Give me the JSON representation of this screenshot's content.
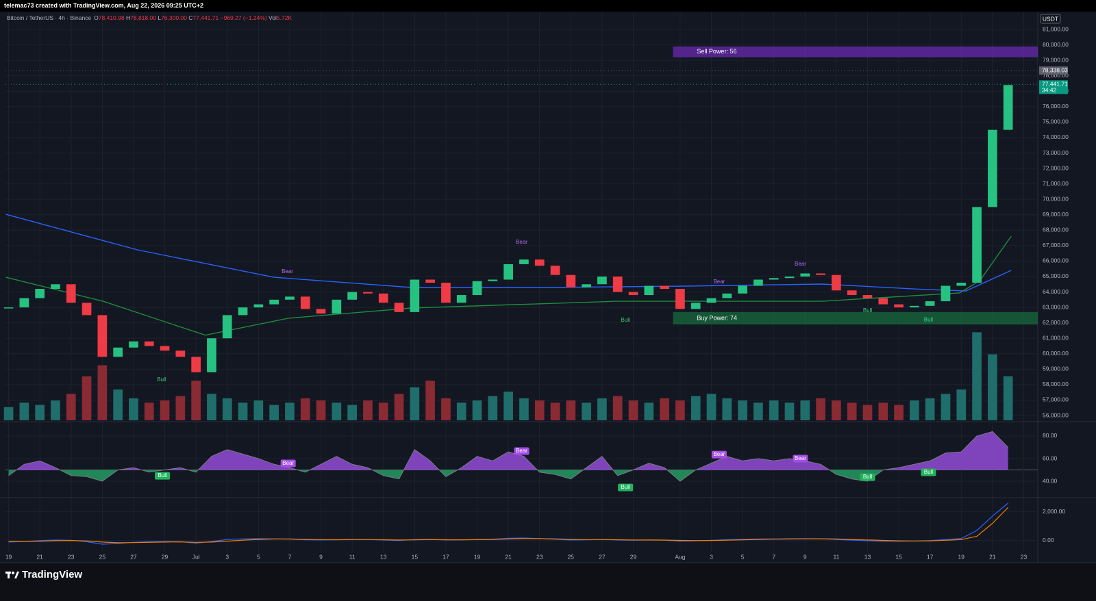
{
  "header": {
    "credit": "telemac73 created with TradingView.com, Aug 22, 2026 09:25 UTC+2",
    "symbol": "Bitcoin / TetherUS · 4h · Binance",
    "ohlc": [
      {
        "key": "O",
        "text": "78,410.98"
      },
      {
        "key": "H",
        "text": "78,818.00"
      },
      {
        "key": "L",
        "text": "76,300.00"
      },
      {
        "key": "C",
        "text": "77,441.71"
      }
    ],
    "change": "−969.27 (−1.24%)",
    "volume_key": "Vol",
    "volume": "5.72K"
  },
  "currency": "USDT",
  "footer": "TradingView",
  "chart_data": [
    {
      "type": "candlestick",
      "x": [
        0,
        1,
        2,
        3,
        4,
        5,
        6,
        7,
        8,
        9,
        10,
        11,
        12,
        13,
        14,
        15,
        16,
        17,
        18,
        19,
        20,
        21,
        22,
        23,
        24,
        25,
        26,
        27,
        28,
        29,
        30,
        31,
        32,
        33,
        34,
        35,
        36,
        37,
        38,
        39,
        40,
        41,
        42,
        43,
        44,
        45,
        46,
        47,
        48,
        49,
        50,
        51,
        52,
        53,
        54,
        55,
        56,
        57,
        58,
        59,
        60,
        61,
        62,
        63,
        64
      ],
      "values": [
        63000,
        63600,
        64200,
        64500,
        63300,
        62500,
        59800,
        60400,
        60800,
        60500,
        60200,
        59800,
        58800,
        61000,
        62500,
        63000,
        63200,
        63500,
        63700,
        62900,
        62600,
        63500,
        64000,
        63900,
        63300,
        62700,
        64800,
        64600,
        63300,
        63800,
        64700,
        64800,
        65800,
        66100,
        65700,
        65100,
        64300,
        64500,
        65000,
        64000,
        63800,
        64400,
        64200,
        62900,
        63300,
        63600,
        63900,
        64400,
        64800,
        64900,
        65000,
        65200,
        65100,
        64100,
        63800,
        63600,
        63200,
        63000,
        63100,
        63400,
        64400,
        64600,
        69500,
        74500,
        77400
      ],
      "up_color": "#26c281",
      "down_color": "#ef3b45",
      "volume": [
        6,
        8,
        7,
        9,
        12,
        20,
        25,
        14,
        10,
        8,
        9,
        11,
        18,
        12,
        10,
        8,
        9,
        7,
        8,
        10,
        9,
        8,
        7,
        9,
        8,
        12,
        15,
        18,
        10,
        8,
        9,
        11,
        13,
        10,
        9,
        8,
        9,
        8,
        10,
        11,
        9,
        8,
        10,
        9,
        11,
        12,
        10,
        9,
        8,
        9,
        8,
        9,
        10,
        9,
        8,
        7,
        8,
        7,
        9,
        10,
        12,
        14,
        40,
        30,
        20
      ],
      "volume_lim": [
        0,
        42
      ],
      "volume_up_color": "#1f6e6c",
      "volume_down_color": "#8a2a33",
      "series": [
        {
          "color": "#2962ff",
          "x": [
            -0.18,
            8.25,
            17.0,
            25.8,
            34.6,
            43.3,
            52.1,
            58.7,
            61.3,
            64.2
          ],
          "values": [
            69030,
            66730,
            64950,
            64290,
            64290,
            64380,
            64510,
            64160,
            64070,
            65400
          ]
        },
        {
          "color": "#1e8c3c",
          "x": [
            -0.18,
            6.05,
            12.6,
            17.9,
            25.8,
            38.9,
            52.1,
            60.9,
            62.2,
            64.2
          ],
          "values": [
            64950,
            63400,
            61200,
            62300,
            62960,
            63400,
            63400,
            63940,
            64740,
            67610
          ]
        }
      ],
      "zones": [
        {
          "label": "Sell Power: 56",
          "x0": 42.54,
          "y0": 79200,
          "y1": 79900,
          "color": "#6a2bb0"
        },
        {
          "label": "Buy Power: 74",
          "x0": 42.54,
          "y0": 61900,
          "y1": 62700,
          "color": "#176b3e"
        }
      ],
      "annotations": [
        {
          "text": "Bear",
          "x": 17.85,
          "y": 65310,
          "color": "#b36bf5"
        },
        {
          "text": "Bear",
          "x": 32.85,
          "y": 67210,
          "color": "#b36bf5"
        },
        {
          "text": "Bear",
          "x": 45.5,
          "y": 64640,
          "color": "#b36bf5"
        },
        {
          "text": "Bear",
          "x": 50.7,
          "y": 65800,
          "color": "#b36bf5"
        },
        {
          "text": "Bull",
          "x": 9.8,
          "y": 58300,
          "color": "#3fcf7f"
        },
        {
          "text": "Bull",
          "x": 39.5,
          "y": 62160,
          "color": "#3fcf7f"
        },
        {
          "text": "Bull",
          "x": 55.0,
          "y": 62780,
          "color": "#3fcf7f"
        },
        {
          "text": "Bull",
          "x": 58.9,
          "y": 62200,
          "color": "#3fcf7f"
        }
      ],
      "price_labels": [
        {
          "value": 78338.03,
          "label": "78,338.03",
          "color": "#5d606b"
        },
        {
          "value": 77441.71,
          "label": "77,441.71",
          "sub": "34:42",
          "color": "#089981"
        }
      ],
      "xlim": [
        -0.2,
        65.9
      ],
      "ylim": [
        55690,
        82110
      ],
      "yticks": [
        {
          "value": 56000,
          "label": "56,000.00"
        },
        {
          "value": 57000,
          "label": "57,000.00"
        },
        {
          "value": 58000,
          "label": "58,000.00"
        },
        {
          "value": 59000,
          "label": "59,000.00"
        },
        {
          "value": 60000,
          "label": "60,000.00"
        },
        {
          "value": 61000,
          "label": "61,000.00"
        },
        {
          "value": 62000,
          "label": "62,000.00"
        },
        {
          "value": 63000,
          "label": "63,000.00"
        },
        {
          "value": 64000,
          "label": "64,000.00"
        },
        {
          "value": 65000,
          "label": "65,000.00"
        },
        {
          "value": 66000,
          "label": "66,000.00"
        },
        {
          "value": 67000,
          "label": "67,000.00"
        },
        {
          "value": 68000,
          "label": "68,000.00"
        },
        {
          "value": 69000,
          "label": "69,000.00"
        },
        {
          "value": 70000,
          "label": "70,000.00"
        },
        {
          "value": 71000,
          "label": "71,000.00"
        },
        {
          "value": 72000,
          "label": "72,000.00"
        },
        {
          "value": 73000,
          "label": "73,000.00"
        },
        {
          "value": 74000,
          "label": "74,000.00"
        },
        {
          "value": 75000,
          "label": "75,000.00"
        },
        {
          "value": 76000,
          "label": "76,000.00"
        },
        {
          "value": 77000,
          "label": "77,000.00"
        },
        {
          "value": 78000,
          "label": "78,000.00"
        },
        {
          "value": 79000,
          "label": "79,000.00"
        },
        {
          "value": 80000,
          "label": "80,000.00"
        },
        {
          "value": 81000,
          "label": "81,000.00"
        }
      ],
      "grid": true
    },
    {
      "type": "area",
      "x": [
        0,
        1,
        2,
        3,
        4,
        5,
        6,
        7,
        8,
        9,
        10,
        11,
        12,
        13,
        14,
        15,
        16,
        17,
        18,
        19,
        20,
        21,
        22,
        23,
        24,
        25,
        26,
        27,
        28,
        29,
        30,
        31,
        32,
        33,
        34,
        35,
        36,
        37,
        38,
        39,
        40,
        41,
        42,
        43,
        44,
        45,
        46,
        47,
        48,
        49,
        50,
        51,
        52,
        53,
        54,
        55,
        56,
        57,
        58,
        59,
        60,
        61,
        62,
        63,
        64
      ],
      "values": [
        45,
        55,
        58,
        52,
        45,
        44,
        40,
        50,
        52,
        48,
        50,
        52,
        48,
        62,
        68,
        64,
        60,
        55,
        52,
        48,
        55,
        62,
        55,
        52,
        45,
        42,
        68,
        58,
        44,
        52,
        62,
        58,
        66,
        62,
        48,
        46,
        42,
        52,
        62,
        45,
        50,
        56,
        52,
        40,
        50,
        56,
        62,
        58,
        60,
        58,
        60,
        58,
        55,
        46,
        42,
        40,
        50,
        52,
        55,
        58,
        65,
        66,
        80,
        84,
        70
      ],
      "baseline": 50,
      "above_color": "#9b4fe3",
      "below_color": "#25a468",
      "annotations": [
        {
          "text": "Bear",
          "x": 17.9,
          "y": 55.8,
          "color": "#a54ce8"
        },
        {
          "text": "Bear",
          "x": 32.85,
          "y": 66.7,
          "color": "#a54ce8"
        },
        {
          "text": "Bear",
          "x": 45.5,
          "y": 63.6,
          "color": "#a54ce8"
        },
        {
          "text": "Bear",
          "x": 50.7,
          "y": 60,
          "color": "#a54ce8"
        },
        {
          "text": "Bull",
          "x": 9.85,
          "y": 44.8,
          "color": "#22b35e"
        },
        {
          "text": "Bull",
          "x": 39.5,
          "y": 34.5,
          "color": "#22b35e"
        },
        {
          "text": "Bull",
          "x": 55.0,
          "y": 43.6,
          "color": "#22b35e"
        },
        {
          "text": "Bull",
          "x": 58.9,
          "y": 47.9,
          "color": "#22b35e"
        }
      ],
      "xlim": [
        -0.2,
        65.9
      ],
      "ylim": [
        26.7,
        91.5
      ],
      "yticks": [
        {
          "value": 40,
          "label": "40.00"
        },
        {
          "value": 60,
          "label": "60.00"
        },
        {
          "value": 80,
          "label": "80.00"
        }
      ],
      "grid": true
    },
    {
      "type": "line",
      "x": [
        0,
        1,
        2,
        3,
        4,
        5,
        6,
        7,
        8,
        9,
        10,
        11,
        12,
        13,
        14,
        15,
        16,
        17,
        18,
        19,
        20,
        21,
        22,
        23,
        24,
        25,
        26,
        27,
        28,
        29,
        30,
        31,
        32,
        33,
        34,
        35,
        36,
        37,
        38,
        39,
        40,
        41,
        42,
        43,
        44,
        45,
        46,
        47,
        48,
        49,
        50,
        51,
        52,
        53,
        54,
        55,
        56,
        57,
        58,
        59,
        60,
        61,
        62,
        63,
        64
      ],
      "series": [
        {
          "color": "#2962ff",
          "values": [
            -100,
            -60,
            0,
            40,
            20,
            -80,
            -250,
            -200,
            -120,
            -80,
            -60,
            -80,
            -180,
            -60,
            80,
            120,
            140,
            120,
            100,
            60,
            40,
            60,
            80,
            70,
            40,
            0,
            80,
            90,
            40,
            50,
            80,
            100,
            160,
            180,
            140,
            90,
            40,
            50,
            80,
            40,
            20,
            40,
            30,
            -40,
            -20,
            20,
            60,
            90,
            110,
            120,
            130,
            140,
            130,
            80,
            30,
            -10,
            -40,
            -50,
            -30,
            0,
            80,
            150,
            700,
            1700,
            2600
          ]
        },
        {
          "color": "#f57c00",
          "values": [
            -60,
            -60,
            -40,
            -10,
            5,
            -20,
            -100,
            -150,
            -140,
            -120,
            -100,
            -90,
            -120,
            -100,
            -40,
            30,
            80,
            110,
            110,
            90,
            70,
            60,
            70,
            70,
            60,
            40,
            50,
            70,
            60,
            55,
            65,
            80,
            110,
            140,
            140,
            120,
            90,
            70,
            70,
            60,
            45,
            40,
            35,
            10,
            0,
            5,
            25,
            50,
            75,
            95,
            110,
            120,
            125,
            110,
            80,
            45,
            10,
            -15,
            -25,
            -15,
            20,
            70,
            300,
            1200,
            2300
          ]
        }
      ],
      "xlim": [
        -0.2,
        65.9
      ],
      "ylim": [
        -724,
        2931
      ],
      "yticks": [
        {
          "value": 0,
          "label": "0.00"
        },
        {
          "value": 2000,
          "label": "2,000.00"
        }
      ],
      "xticks": [
        {
          "value": 0,
          "label": "19"
        },
        {
          "value": 2,
          "label": "21"
        },
        {
          "value": 4,
          "label": "23"
        },
        {
          "value": 6,
          "label": "25"
        },
        {
          "value": 8,
          "label": "27"
        },
        {
          "value": 10,
          "label": "29"
        },
        {
          "value": 12,
          "label": "Jul"
        },
        {
          "value": 14,
          "label": "3"
        },
        {
          "value": 16,
          "label": "5"
        },
        {
          "value": 18,
          "label": "7"
        },
        {
          "value": 20,
          "label": "9"
        },
        {
          "value": 22,
          "label": "11"
        },
        {
          "value": 24,
          "label": "13"
        },
        {
          "value": 26,
          "label": "15"
        },
        {
          "value": 28,
          "label": "17"
        },
        {
          "value": 30,
          "label": "19"
        },
        {
          "value": 32,
          "label": "21"
        },
        {
          "value": 34,
          "label": "23"
        },
        {
          "value": 36,
          "label": "25"
        },
        {
          "value": 38,
          "label": "27"
        },
        {
          "value": 40,
          "label": "29"
        },
        {
          "value": 43,
          "label": "Aug"
        },
        {
          "value": 45,
          "label": "3"
        },
        {
          "value": 47,
          "label": "5"
        },
        {
          "value": 49,
          "label": "7"
        },
        {
          "value": 51,
          "label": "9"
        },
        {
          "value": 53,
          "label": "11"
        },
        {
          "value": 55,
          "label": "13"
        },
        {
          "value": 57,
          "label": "15"
        },
        {
          "value": 59,
          "label": "17"
        },
        {
          "value": 61,
          "label": "19"
        },
        {
          "value": 63,
          "label": "21"
        },
        {
          "value": 65,
          "label": "23"
        }
      ],
      "grid": true
    }
  ]
}
